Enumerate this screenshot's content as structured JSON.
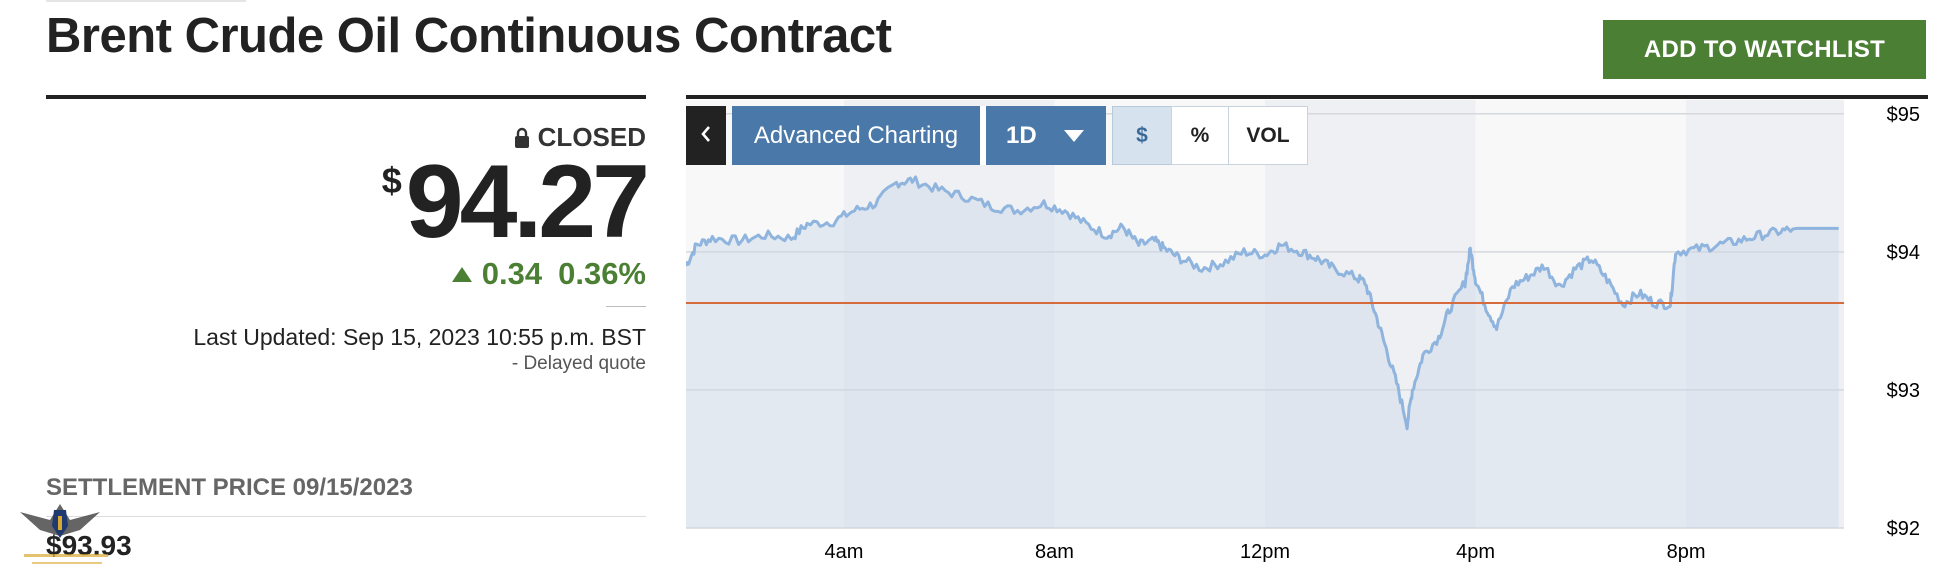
{
  "header": {
    "title": "Brent Crude Oil Continuous Contract",
    "watchlist_label": "ADD TO WATCHLIST"
  },
  "quote": {
    "status": "CLOSED",
    "currency_symbol": "$",
    "price": "94.27",
    "change": "0.34",
    "change_percent": "0.36%",
    "last_updated": "Last Updated: Sep 15, 2023 10:55 p.m. BST",
    "delayed_note": "-  Delayed quote",
    "settlement_label": "SETTLEMENT PRICE 09/15/2023",
    "settlement_value": "$93.93"
  },
  "colors": {
    "accent_green": "#4b7f34",
    "chart_blue": "#4a78a8",
    "line": "#8fb4de",
    "reference": "#d66b3d"
  },
  "chart_toolbar": {
    "back_icon": "chevron-left-icon",
    "advanced_label": "Advanced Charting",
    "range_label": "1D",
    "usd_label": "$",
    "pct_label": "%",
    "vol_label": "VOL"
  },
  "chart_data": {
    "type": "area",
    "y_ticks": [
      "$95",
      "$94",
      "$93",
      "$92"
    ],
    "x_ticks": [
      "4am",
      "8am",
      "12pm",
      "4pm",
      "8pm"
    ],
    "ylim": [
      92,
      95.1
    ],
    "reference_line": 93.63,
    "x_unit": "hours since midnight",
    "xlim": [
      1,
      23
    ],
    "grid": true,
    "points": [
      [
        1.0,
        93.9
      ],
      [
        1.2,
        94.05
      ],
      [
        1.5,
        94.1
      ],
      [
        2.0,
        94.08
      ],
      [
        2.5,
        94.12
      ],
      [
        3.0,
        94.1
      ],
      [
        3.3,
        94.2
      ],
      [
        3.8,
        94.22
      ],
      [
        4.2,
        94.3
      ],
      [
        4.6,
        94.35
      ],
      [
        5.0,
        94.5
      ],
      [
        5.3,
        94.52
      ],
      [
        5.8,
        94.45
      ],
      [
        6.3,
        94.4
      ],
      [
        6.8,
        94.33
      ],
      [
        7.3,
        94.3
      ],
      [
        7.8,
        94.35
      ],
      [
        8.2,
        94.3
      ],
      [
        8.6,
        94.2
      ],
      [
        9.0,
        94.12
      ],
      [
        9.3,
        94.18
      ],
      [
        9.6,
        94.05
      ],
      [
        9.9,
        94.08
      ],
      [
        10.1,
        94.02
      ],
      [
        10.4,
        93.95
      ],
      [
        10.8,
        93.88
      ],
      [
        11.2,
        93.92
      ],
      [
        11.6,
        94.0
      ],
      [
        12.0,
        93.98
      ],
      [
        12.3,
        94.05
      ],
      [
        12.7,
        94.0
      ],
      [
        13.0,
        93.95
      ],
      [
        13.3,
        93.88
      ],
      [
        13.7,
        93.82
      ],
      [
        13.9,
        93.78
      ],
      [
        14.1,
        93.55
      ],
      [
        14.3,
        93.3
      ],
      [
        14.5,
        93.05
      ],
      [
        14.7,
        92.75
      ],
      [
        14.8,
        93.0
      ],
      [
        15.0,
        93.25
      ],
      [
        15.3,
        93.38
      ],
      [
        15.5,
        93.58
      ],
      [
        15.8,
        93.78
      ],
      [
        15.9,
        94.02
      ],
      [
        16.0,
        93.8
      ],
      [
        16.2,
        93.6
      ],
      [
        16.4,
        93.45
      ],
      [
        16.7,
        93.75
      ],
      [
        17.0,
        93.82
      ],
      [
        17.3,
        93.9
      ],
      [
        17.6,
        93.75
      ],
      [
        17.9,
        93.88
      ],
      [
        18.2,
        93.95
      ],
      [
        18.5,
        93.8
      ],
      [
        18.8,
        93.62
      ],
      [
        19.1,
        93.7
      ],
      [
        19.4,
        93.63
      ],
      [
        19.7,
        93.62
      ],
      [
        19.8,
        94.0
      ],
      [
        20.2,
        94.02
      ],
      [
        20.6,
        94.05
      ],
      [
        21.0,
        94.08
      ],
      [
        21.4,
        94.12
      ],
      [
        21.8,
        94.15
      ],
      [
        22.1,
        94.17
      ],
      [
        22.9,
        94.17
      ]
    ]
  }
}
